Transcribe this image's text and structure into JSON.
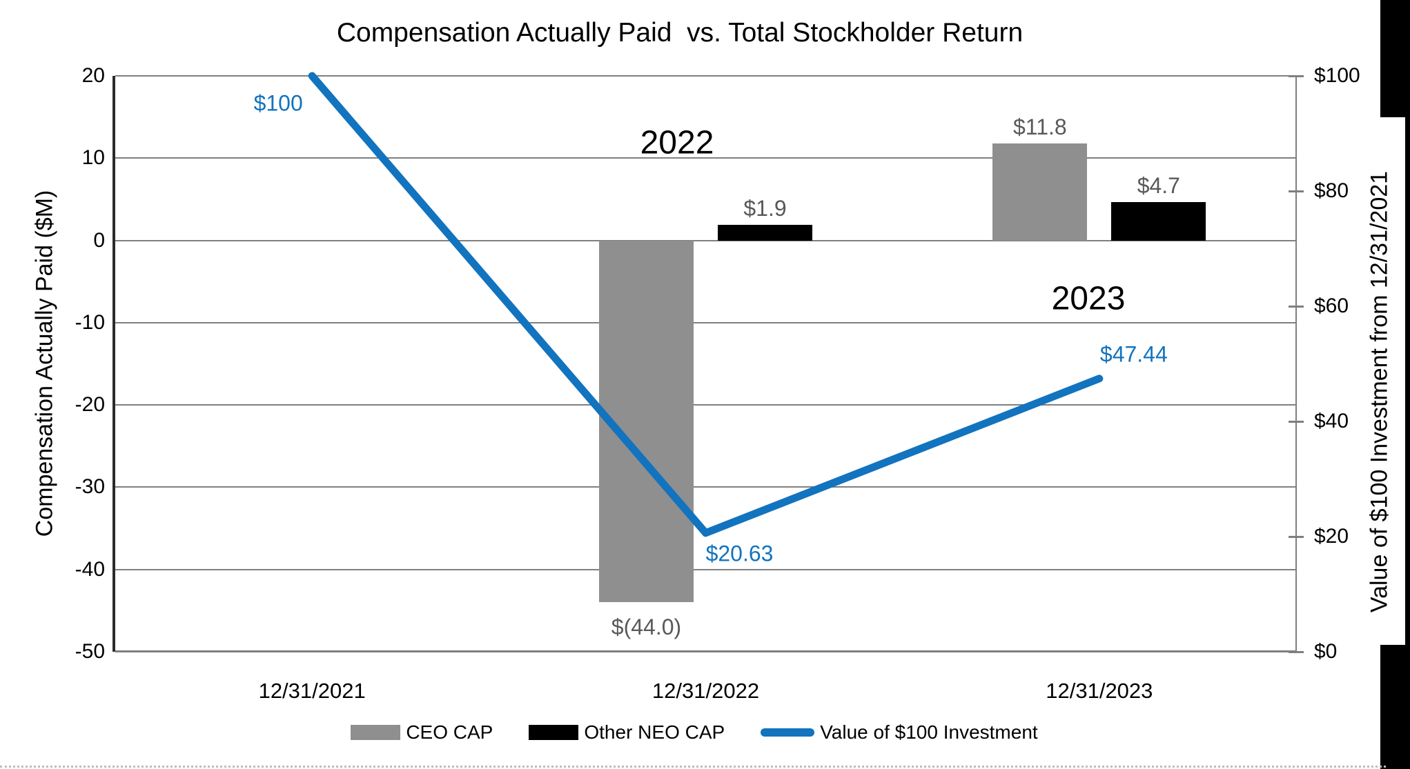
{
  "title": "Compensation Actually Paid  vs. Total Stockholder Return",
  "chart_data": {
    "type": "combo",
    "title": "Compensation Actually Paid  vs. Total Stockholder Return",
    "categories": [
      "12/31/2021",
      "12/31/2022",
      "12/31/2023"
    ],
    "series": [
      {
        "name": "CEO CAP",
        "kind": "bar",
        "axis": "left",
        "color": "#8f8f8f",
        "pattern": true,
        "values": [
          null,
          -44.0,
          11.8
        ],
        "data_labels": [
          "",
          "$(44.0)",
          "$11.8"
        ]
      },
      {
        "name": "Other NEO CAP",
        "kind": "bar",
        "axis": "left",
        "color": "#000000",
        "pattern": false,
        "values": [
          null,
          1.9,
          4.7
        ],
        "data_labels": [
          "",
          "$1.9",
          "$4.7"
        ]
      },
      {
        "name": "Value of $100 Investment",
        "kind": "line",
        "axis": "right",
        "color": "#1273be",
        "values": [
          100,
          20.63,
          47.44
        ],
        "data_labels": [
          "$100",
          "$20.63",
          "$47.44"
        ]
      }
    ],
    "left_axis": {
      "title": "Compensation Actually Paid ($M)",
      "min": -50,
      "max": 20,
      "step": 10,
      "tick_labels": [
        "20",
        "10",
        "0",
        "-10",
        "-20",
        "-30",
        "-40",
        "-50"
      ]
    },
    "right_axis": {
      "title": "Value of $100 Investment from 12/31/2021",
      "min": 0,
      "max": 100,
      "step": 20,
      "tick_labels": [
        "$100",
        "$80",
        "$60",
        "$40",
        "$20",
        "$0"
      ]
    },
    "annotations": [
      {
        "text": "2022"
      },
      {
        "text": "2023"
      }
    ],
    "grid": true,
    "legend_position": "bottom"
  },
  "legend": {
    "items": [
      {
        "label": "CEO CAP",
        "swatch": "bar",
        "color": "#8f8f8f",
        "pattern": true
      },
      {
        "label": "Other NEO CAP",
        "swatch": "bar",
        "color": "#000000",
        "pattern": false
      },
      {
        "label": "Value of $100 Investment",
        "swatch": "line",
        "color": "#1273be",
        "pattern": false
      }
    ]
  },
  "colors": {
    "line_blue": "#1273be",
    "bar_gray": "#8f8f8f",
    "bar_black": "#000000",
    "grid_gray": "#7f7f7f",
    "data_label_gray": "#595959"
  }
}
